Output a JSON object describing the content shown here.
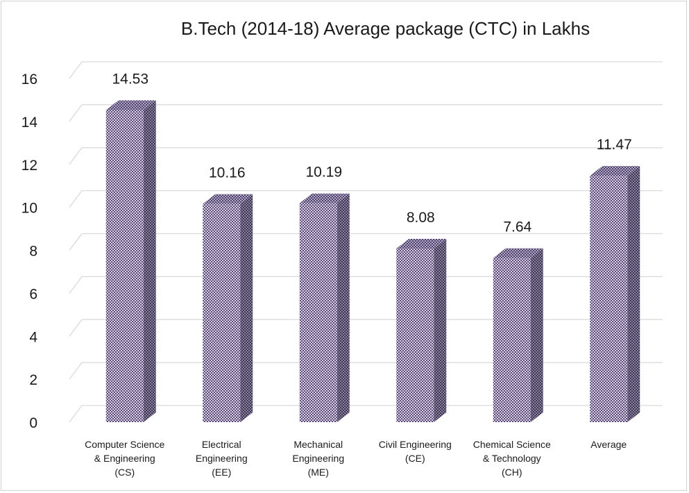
{
  "chart_data": {
    "type": "bar",
    "title": "B.Tech (2014-18) Average package (CTC) in Lakhs",
    "xlabel": "",
    "ylabel": "",
    "categories": [
      "Computer Science\n& Engineering\n(CS)",
      "Electrical\nEngineering\n(EE)",
      "Mechanical\nEngineering\n(ME)",
      "Civil Engineering\n(CE)",
      "Chemical Science\n& Technology\n(CH)",
      "Average"
    ],
    "values": [
      14.53,
      10.16,
      10.19,
      8.08,
      7.64,
      11.47
    ],
    "data_labels": [
      "14.53",
      "10.16",
      "10.19",
      "8.08",
      "7.64",
      "11.47"
    ],
    "ylim": [
      0,
      16
    ],
    "yticks": [
      "0",
      "2",
      "4",
      "6",
      "8",
      "10",
      "12",
      "14",
      "16"
    ],
    "grid": true,
    "legend": "none",
    "style": "3d-column",
    "colors": {
      "bar_front": "#b7a9d0",
      "bar_pattern": "#5a4c73",
      "bar_side": "#5f5672",
      "bar_top": "#8c7fa6",
      "grid": "#d9d9d9"
    }
  }
}
